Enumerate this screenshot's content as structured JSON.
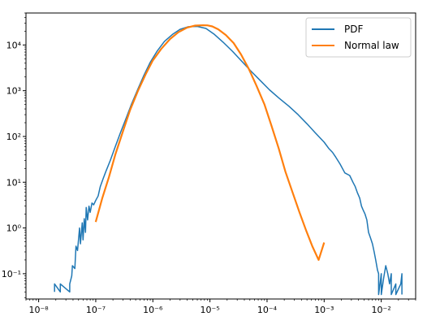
{
  "chart_data": {
    "type": "line",
    "xscale": "log",
    "yscale": "log",
    "xlim": [
      6e-09,
      0.04
    ],
    "ylim": [
      0.028,
      50000
    ],
    "x_ticks": [
      {
        "value": 1e-08,
        "label": "10⁻⁸"
      },
      {
        "value": 1e-07,
        "label": "10⁻⁷"
      },
      {
        "value": 1e-06,
        "label": "10⁻⁶"
      },
      {
        "value": 1e-05,
        "label": "10⁻⁵"
      },
      {
        "value": 0.0001,
        "label": "10⁻⁴"
      },
      {
        "value": 0.001,
        "label": "10⁻³"
      },
      {
        "value": 0.01,
        "label": "10⁻²"
      }
    ],
    "y_ticks": [
      {
        "value": 0.1,
        "label": "10⁻¹"
      },
      {
        "value": 1,
        "label": "10⁰"
      },
      {
        "value": 10,
        "label": "10¹"
      },
      {
        "value": 100,
        "label": "10²"
      },
      {
        "value": 1000,
        "label": "10³"
      },
      {
        "value": 10000,
        "label": "10⁴"
      }
    ],
    "legend_position": "top-right",
    "series": [
      {
        "name": "PDF",
        "color": "#1f77b4",
        "x": [
          1.9e-08,
          1.9e-08,
          2.4e-08,
          2.4e-08,
          3.5e-08,
          3.5e-08,
          3.8e-08,
          3.9e-08,
          4.3e-08,
          4.5e-08,
          4.8e-08,
          5.2e-08,
          5.4e-08,
          5.8e-08,
          6e-08,
          6.3e-08,
          6.6e-08,
          6.8e-08,
          7.2e-08,
          7.6e-08,
          8e-08,
          8.6e-08,
          9.2e-08,
          1e-07,
          1.1e-07,
          1.2e-07,
          1.35e-07,
          1.5e-07,
          1.8e-07,
          2.2e-07,
          2.7e-07,
          3.4e-07,
          4.2e-07,
          5.5e-07,
          7e-07,
          9e-07,
          1.2e-06,
          1.6e-06,
          2.2e-06,
          3e-06,
          4.2e-06,
          6e-06,
          8.5e-06,
          1.2e-05,
          1.7e-05,
          2.5e-05,
          3.6e-05,
          5.2e-05,
          7.5e-05,
          0.00011,
          0.00016,
          0.00024,
          0.00035,
          0.0005,
          0.0007,
          0.001,
          0.0012,
          0.0014,
          0.0016,
          0.0019,
          0.0023,
          0.0028,
          0.0032,
          0.0035,
          0.0038,
          0.0042,
          0.0045,
          0.0048,
          0.0052,
          0.0056,
          0.006,
          0.0065,
          0.007,
          0.0075,
          0.008,
          0.0086,
          0.009,
          0.009,
          0.01,
          0.01,
          0.011,
          0.012,
          0.013,
          0.014,
          0.015,
          0.015,
          0.018,
          0.018,
          0.022,
          0.023,
          0.023
        ],
        "y": [
          0.04,
          0.06,
          0.04,
          0.06,
          0.04,
          0.06,
          0.09,
          0.15,
          0.13,
          0.4,
          0.32,
          1.0,
          0.45,
          1.3,
          0.55,
          1.6,
          0.8,
          2.8,
          1.5,
          3.0,
          2.2,
          3.5,
          3.2,
          4.0,
          5.0,
          8.0,
          12,
          17,
          30,
          60,
          120,
          250,
          500,
          1100,
          2200,
          4200,
          7500,
          12000,
          17000,
          22000,
          25000,
          25500,
          23000,
          17000,
          11500,
          7200,
          4400,
          2700,
          1700,
          1050,
          700,
          460,
          300,
          190,
          120,
          75,
          55,
          45,
          35,
          25,
          16,
          14,
          10,
          8,
          6,
          4.5,
          3,
          2.5,
          2.0,
          1.5,
          0.8,
          0.6,
          0.45,
          0.3,
          0.2,
          0.12,
          0.1,
          0.035,
          0.1,
          0.035,
          0.08,
          0.15,
          0.1,
          0.06,
          0.1,
          0.035,
          0.06,
          0.035,
          0.06,
          0.1,
          0.035
        ]
      },
      {
        "name": "Normal law",
        "color": "#ff7f0e",
        "x": [
          1e-07,
          1.3e-07,
          1.7e-07,
          2.2e-07,
          3e-07,
          4e-07,
          5.5e-07,
          7.5e-07,
          1e-06,
          1.4e-06,
          2e-06,
          2.8e-06,
          4e-06,
          5.5e-06,
          7.5e-06,
          9e-06,
          1.1e-05,
          1.4e-05,
          1.9e-05,
          2.6e-05,
          3.5e-05,
          4.8e-05,
          6.5e-05,
          9e-05,
          0.00012,
          0.00016,
          0.00021,
          0.00028,
          0.00037,
          0.00048,
          0.00062,
          0.0008,
          0.001
        ],
        "y": [
          1.35,
          4.5,
          13,
          40,
          130,
          380,
          1000,
          2300,
          4600,
          8200,
          13500,
          19000,
          24000,
          26500,
          27000,
          26800,
          25500,
          22000,
          16500,
          11000,
          6200,
          3000,
          1300,
          500,
          170,
          55,
          17,
          6,
          2.2,
          0.9,
          0.4,
          0.2,
          0.48
        ]
      }
    ]
  }
}
